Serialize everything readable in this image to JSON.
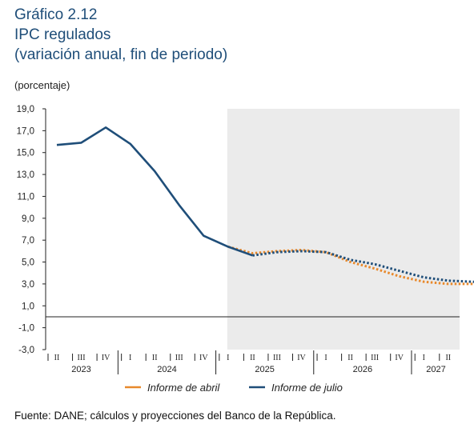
{
  "header": {
    "label": "Gráfico 2.12",
    "title": "IPC regulados",
    "subtitle": "(variación anual, fin de periodo)"
  },
  "unit_label": "(porcentaje)",
  "source": "Fuente: DANE; cálculos y proyecciones del Banco de la República.",
  "colors": {
    "abril": "#e8892c",
    "julio": "#1f4e79",
    "projection_shade": "#ebebeb",
    "axis": "#222222"
  },
  "chart_data": {
    "type": "line",
    "ylabel": "(porcentaje)",
    "ylim": [
      -3,
      19
    ],
    "yticks": [
      "19,0",
      "17,0",
      "15,0",
      "13,0",
      "11,0",
      "9,0",
      "7,0",
      "5,0",
      "3,0",
      "1,0",
      "-1,0",
      "-3,0"
    ],
    "ytick_values": [
      19,
      17,
      15,
      13,
      11,
      9,
      7,
      5,
      3,
      1,
      -1,
      -3
    ],
    "x_quarter_labels": [
      "II",
      "III",
      "IV",
      "I",
      "II",
      "III",
      "IV",
      "I",
      "II",
      "III",
      "IV",
      "I",
      "II",
      "III",
      "IV",
      "I",
      "II"
    ],
    "years": [
      {
        "label": "2023",
        "quarters": [
          "II",
          "III",
          "IV"
        ]
      },
      {
        "label": "2024",
        "quarters": [
          "I",
          "II",
          "III",
          "IV"
        ]
      },
      {
        "label": "2025",
        "quarters": [
          "I",
          "II",
          "III",
          "IV"
        ]
      },
      {
        "label": "2026",
        "quarters": [
          "I",
          "II",
          "III",
          "IV"
        ]
      },
      {
        "label": "2027",
        "quarters": [
          "I",
          "II"
        ]
      }
    ],
    "projection_starts_at_month_index": 21,
    "grid": false,
    "legend_position": "bottom",
    "series": [
      {
        "name": "Informe de julio",
        "style": "solid-then-dotted",
        "observed": [
          [
            0,
            15.7
          ],
          [
            3,
            15.9
          ],
          [
            6,
            17.3
          ],
          [
            9,
            15.8
          ],
          [
            12,
            13.3
          ],
          [
            15,
            10.2
          ],
          [
            18,
            7.4
          ],
          [
            21,
            6.4
          ],
          [
            24,
            5.6
          ]
        ],
        "projected": [
          [
            24,
            5.6
          ],
          [
            27,
            5.9
          ],
          [
            30,
            6.0
          ],
          [
            33,
            5.9
          ],
          [
            36,
            5.2
          ],
          [
            39,
            4.8
          ],
          [
            42,
            4.2
          ],
          [
            45,
            3.6
          ],
          [
            48,
            3.3
          ],
          [
            51,
            3.2
          ],
          [
            54,
            3.1
          ]
        ]
      },
      {
        "name": "Informe de abril",
        "style": "dotted",
        "projected": [
          [
            21,
            6.4
          ],
          [
            24,
            5.8
          ],
          [
            27,
            6.0
          ],
          [
            30,
            6.1
          ],
          [
            33,
            5.9
          ],
          [
            36,
            5.0
          ],
          [
            39,
            4.4
          ],
          [
            42,
            3.7
          ],
          [
            45,
            3.2
          ],
          [
            48,
            3.0
          ],
          [
            51,
            3.0
          ]
        ]
      }
    ],
    "legend": [
      "Informe de abril",
      "Informe de julio"
    ]
  }
}
